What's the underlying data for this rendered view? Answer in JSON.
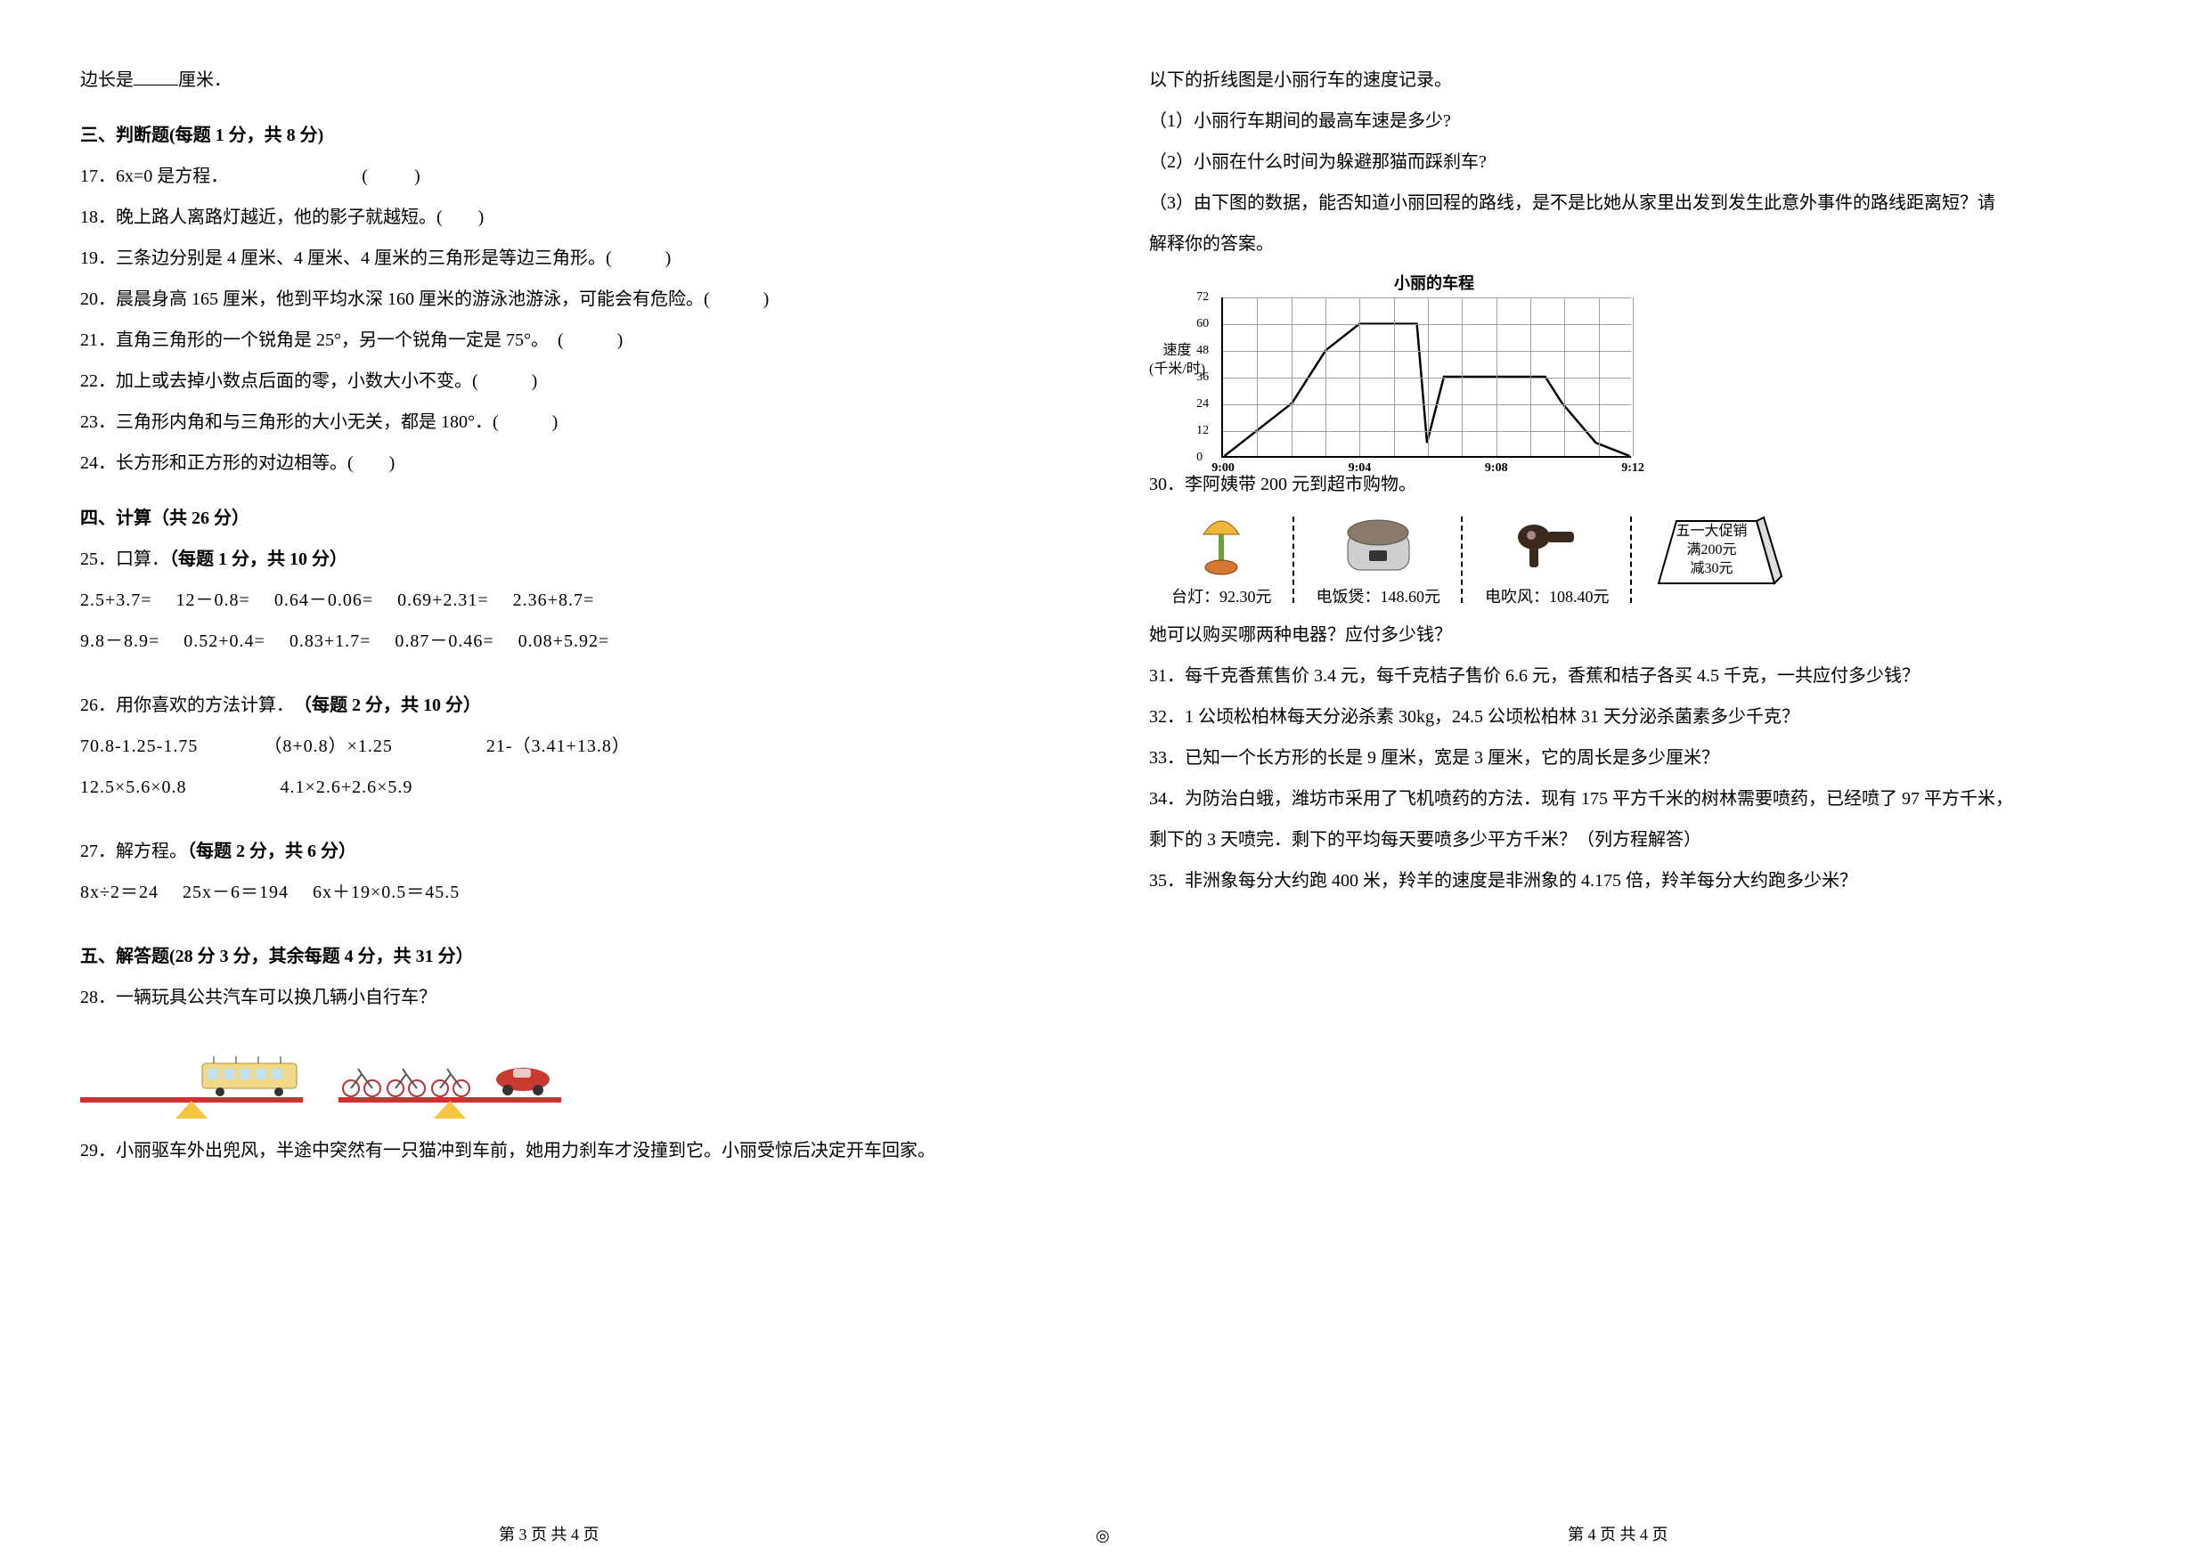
{
  "left": {
    "q_partial": "边长是______厘米．",
    "section3_title": "三、判断题(每题 1 分，共 8 分)",
    "q17": "17．6x=0 是方程．",
    "q18": "18．晚上路人离路灯越近，他的影子就越短。(　　)",
    "q19": "19．三条边分别是 4 厘米、4 厘米、4 厘米的三角形是等边三角形。(　　　)",
    "q20": "20．晨晨身高 165 厘米，他到平均水深 160 厘米的游泳池游泳，可能会有危险。(　　　)",
    "q21": "21．直角三角形的一个锐角是 25°，另一个锐角一定是 75°。　(　　　)",
    "q22": "22．加上或去掉小数点后面的零，小数大小不变。(　　　)",
    "q23": "23．三角形内角和与三角形的大小无关，都是 180°．(　　　)",
    "q24": "24．长方形和正方形的对边相等。(　　)",
    "section4_title": "四、计算（共 26 分）",
    "q25_title": "25．口算．（每题 1 分，共 10 分）",
    "q25_line1": "2.5+3.7=　 12－0.8=　 0.64－0.06=　 0.69+2.31=　 2.36+8.7=",
    "q25_line2": "9.8－8.9=　 0.52+0.4=　 0.83+1.7=　 0.87－0.46=　 0.08+5.92=",
    "q26_title": "26．用你喜欢的方法计算．　（每题 2 分，共 10 分）",
    "q26_line1": "70.8-1.25-1.75　　　　（8+0.8）×1.25　　　　　21-（3.41+13.8）",
    "q26_line2": "12.5×5.6×0.8　　　　　4.1×2.6+2.6×5.9",
    "q27_title": "27．解方程。（每题 2 分，共 6 分）",
    "q27_line": "8x÷2＝24　 25x－6＝194　 6x＋19×0.5＝45.5",
    "section5_title": "五、解答题(28 分 3 分，其余每题 4 分，共 31 分）",
    "q28": "28．一辆玩具公共汽车可以换几辆小自行车？",
    "q29": "29．小丽驱车外出兜风，半途中突然有一只猫冲到车前，她用力刹车才没撞到它。小丽受惊后决定开车回家。",
    "footer": "第 3 页 共 4 页"
  },
  "right": {
    "q29_cont": "以下的折线图是小丽行车的速度记录。",
    "q29_1": "（1）小丽行车期间的最高车速是多少?",
    "q29_2": "（2）小丽在什么时间为躲避那猫而踩刹车?",
    "q29_3a": "（3）由下图的数据，能否知道小丽回程的路线，是不是比她从家里出发到发生此意外事件的路线距离短？请",
    "q29_3b": "解释你的答案。",
    "chart": {
      "title": "小丽的车程",
      "ylabel_line1": "速度",
      "ylabel_line2": "(千米/时)",
      "y_ticks": [
        0,
        12,
        24,
        36,
        48,
        60,
        72
      ],
      "x_ticks": [
        "9:00",
        "9:04",
        "9:08",
        "9:12"
      ],
      "x_minor_count": 12,
      "points": [
        [
          0,
          0
        ],
        [
          1,
          12
        ],
        [
          2,
          24
        ],
        [
          3,
          48
        ],
        [
          4,
          60
        ],
        [
          5,
          60
        ],
        [
          5.7,
          60
        ],
        [
          6,
          6
        ],
        [
          6.5,
          36
        ],
        [
          7,
          36
        ],
        [
          8,
          36
        ],
        [
          9,
          36
        ],
        [
          9.5,
          36
        ],
        [
          10,
          24
        ],
        [
          11,
          6
        ],
        [
          12,
          0
        ]
      ],
      "line_color": "#000000",
      "grid_color": "#9aa0a6",
      "background": "#ffffff"
    },
    "q30": "30．李阿姨带 200 元到超市购物。",
    "shop": {
      "lamp_label": "台灯：92.30元",
      "cooker_label": "电饭煲：148.60元",
      "dryer_label": "电吹风：108.40元",
      "promo_line1": "五一大促销",
      "promo_line2": "满200元",
      "promo_line3": "减30元"
    },
    "q30_ask": "她可以购买哪两种电器？应付多少钱？",
    "q31": "31．每千克香蕉售价 3.4 元，每千克桔子售价 6.6 元，香蕉和桔子各买 4.5 千克，一共应付多少钱？",
    "q32": "32．1 公顷松柏林每天分泌杀素 30kg，24.5 公顷松柏林 31 天分泌杀菌素多少千克？",
    "q33": "33．已知一个长方形的长是 9 厘米，宽是 3 厘米，它的周长是多少厘米？",
    "q34a": "34．为防治白蛾，潍坊市采用了飞机喷药的方法．现有 175 平方千米的树林需要喷药，已经喷了 97 平方千米，",
    "q34b": "剩下的 3 天喷完．剩下的平均每天要喷多少平方千米？（列方程解答）",
    "q35": "35．非洲象每分大约跑 400 米，羚羊的速度是非洲象的 4.175 倍，羚羊每分大约跑多少米？",
    "footer": "第 4 页 共 4 页"
  },
  "footer_center": "◎"
}
